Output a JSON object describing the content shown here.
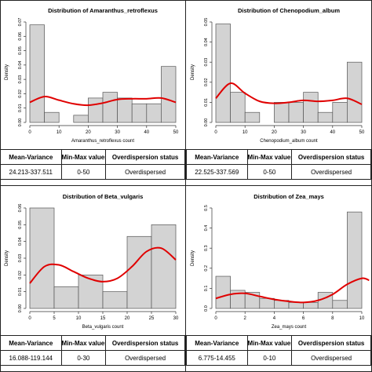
{
  "chart_data": [
    {
      "type": "bar",
      "title": "Distribution of Amaranthus_retroflexus",
      "xlabel": "Amaranthus_retroflexus count",
      "ylabel": "Density",
      "xlim": [
        0,
        50
      ],
      "ylim": [
        0,
        0.07
      ],
      "x_ticks": [
        0,
        10,
        20,
        30,
        40,
        50
      ],
      "y_ticks": [
        0.0,
        0.01,
        0.02,
        0.03,
        0.04,
        0.05,
        0.06,
        0.07
      ],
      "y_tick_labels": [
        "0.00",
        "0.01",
        "0.02",
        "0.03",
        "0.04",
        "0.05",
        "0.06",
        "0.07"
      ],
      "bins": [
        {
          "x0": 0,
          "x1": 5,
          "density": 0.068
        },
        {
          "x0": 5,
          "x1": 10,
          "density": 0.007
        },
        {
          "x0": 10,
          "x1": 15,
          "density": 0.0
        },
        {
          "x0": 15,
          "x1": 20,
          "density": 0.005
        },
        {
          "x0": 20,
          "x1": 25,
          "density": 0.017
        },
        {
          "x0": 25,
          "x1": 30,
          "density": 0.021
        },
        {
          "x0": 30,
          "x1": 35,
          "density": 0.017
        },
        {
          "x0": 35,
          "x1": 40,
          "density": 0.013
        },
        {
          "x0": 40,
          "x1": 45,
          "density": 0.013
        },
        {
          "x0": 45,
          "x1": 50,
          "density": 0.039
        }
      ],
      "curve": {
        "x": [
          0,
          5,
          10,
          15,
          20,
          25,
          30,
          35,
          40,
          45,
          50
        ],
        "y": [
          0.014,
          0.018,
          0.0155,
          0.013,
          0.012,
          0.0135,
          0.016,
          0.0165,
          0.0165,
          0.017,
          0.014
        ]
      }
    },
    {
      "type": "bar",
      "title": "Distribution of Chenopodium_album",
      "xlabel": "Chenopodium_album count",
      "ylabel": "Density",
      "xlim": [
        0,
        50
      ],
      "ylim": [
        0,
        0.05
      ],
      "x_ticks": [
        0,
        10,
        20,
        30,
        40,
        50
      ],
      "y_ticks": [
        0.0,
        0.01,
        0.02,
        0.03,
        0.04,
        0.05
      ],
      "y_tick_labels": [
        "0.00",
        "0.01",
        "0.02",
        "0.03",
        "0.04",
        "0.05"
      ],
      "bins": [
        {
          "x0": 0,
          "x1": 5,
          "density": 0.049
        },
        {
          "x0": 5,
          "x1": 10,
          "density": 0.015
        },
        {
          "x0": 10,
          "x1": 15,
          "density": 0.005
        },
        {
          "x0": 15,
          "x1": 20,
          "density": 0.0
        },
        {
          "x0": 20,
          "x1": 25,
          "density": 0.01
        },
        {
          "x0": 25,
          "x1": 30,
          "density": 0.01
        },
        {
          "x0": 30,
          "x1": 35,
          "density": 0.015
        },
        {
          "x0": 35,
          "x1": 40,
          "density": 0.005
        },
        {
          "x0": 40,
          "x1": 45,
          "density": 0.01
        },
        {
          "x0": 45,
          "x1": 50,
          "density": 0.03
        }
      ],
      "curve": {
        "x": [
          0,
          5,
          10,
          15,
          20,
          25,
          30,
          35,
          40,
          45,
          50
        ],
        "y": [
          0.012,
          0.0195,
          0.0145,
          0.0105,
          0.0095,
          0.01,
          0.011,
          0.0105,
          0.011,
          0.012,
          0.009
        ]
      }
    },
    {
      "type": "bar",
      "title": "Distribution of Beta_vulgaris",
      "xlabel": "Beta_vulgaris count",
      "ylabel": "Density",
      "xlim": [
        0,
        30
      ],
      "ylim": [
        0,
        0.06
      ],
      "x_ticks": [
        0,
        5,
        10,
        15,
        20,
        25,
        30
      ],
      "y_ticks": [
        0.0,
        0.01,
        0.02,
        0.03,
        0.04,
        0.05,
        0.06
      ],
      "y_tick_labels": [
        "0.00",
        "0.01",
        "0.02",
        "0.03",
        "0.04",
        "0.05",
        "0.06"
      ],
      "bins": [
        {
          "x0": 0,
          "x1": 5,
          "density": 0.06
        },
        {
          "x0": 5,
          "x1": 10,
          "density": 0.013
        },
        {
          "x0": 10,
          "x1": 15,
          "density": 0.02
        },
        {
          "x0": 15,
          "x1": 20,
          "density": 0.01
        },
        {
          "x0": 20,
          "x1": 25,
          "density": 0.043
        },
        {
          "x0": 25,
          "x1": 30,
          "density": 0.05
        }
      ],
      "curve": {
        "x": [
          0,
          3,
          6,
          9,
          12,
          15,
          18,
          21,
          24,
          27,
          30
        ],
        "y": [
          0.015,
          0.025,
          0.026,
          0.022,
          0.018,
          0.016,
          0.018,
          0.025,
          0.034,
          0.036,
          0.029
        ]
      }
    },
    {
      "type": "bar",
      "title": "Distribution of Zea_mays",
      "xlabel": "Zea_mays count",
      "ylabel": "Density",
      "xlim": [
        0,
        10
      ],
      "ylim": [
        0,
        0.5
      ],
      "x_ticks": [
        0,
        2,
        4,
        6,
        8,
        10
      ],
      "y_ticks": [
        0.0,
        0.1,
        0.2,
        0.3,
        0.4,
        0.5
      ],
      "y_tick_labels": [
        "0.0",
        "0.1",
        "0.2",
        "0.3",
        "0.4",
        "0.5"
      ],
      "bins": [
        {
          "x0": 0,
          "x1": 1,
          "density": 0.16
        },
        {
          "x0": 1,
          "x1": 2,
          "density": 0.09
        },
        {
          "x0": 2,
          "x1": 3,
          "density": 0.08
        },
        {
          "x0": 3,
          "x1": 4,
          "density": 0.05
        },
        {
          "x0": 4,
          "x1": 5,
          "density": 0.04
        },
        {
          "x0": 5,
          "x1": 6,
          "density": 0.03
        },
        {
          "x0": 6,
          "x1": 7,
          "density": 0.03
        },
        {
          "x0": 7,
          "x1": 8,
          "density": 0.08
        },
        {
          "x0": 8,
          "x1": 9,
          "density": 0.04
        },
        {
          "x0": 9,
          "x1": 10,
          "density": 0.48
        }
      ],
      "curve": {
        "x": [
          0,
          1,
          2,
          3,
          4,
          5,
          6,
          7,
          8,
          9,
          10,
          10.5
        ],
        "y": [
          0.05,
          0.07,
          0.075,
          0.06,
          0.045,
          0.035,
          0.03,
          0.04,
          0.07,
          0.12,
          0.15,
          0.14
        ]
      }
    }
  ],
  "tables": [
    {
      "headers": [
        "Mean-Variance",
        "Min-Max values",
        "Overdispersion status"
      ],
      "row": [
        "24.213-337.511",
        "0-50",
        "Overdispersed"
      ]
    },
    {
      "headers": [
        "Mean-Variance",
        "Min-Max values",
        "Overdispersion status"
      ],
      "row": [
        "22.525-337.569",
        "0-50",
        "Overdispersed"
      ]
    },
    {
      "headers": [
        "Mean-Variance",
        "Min-Max values",
        "Overdispersion status"
      ],
      "row": [
        "16.088-119.144",
        "0-30",
        "Overdispersed"
      ]
    },
    {
      "headers": [
        "Mean-Variance",
        "Min-Max values",
        "Overdispersion status"
      ],
      "row": [
        "6.775-14.455",
        "0-10",
        "Overdispersed"
      ]
    }
  ],
  "colors": {
    "bar_fill": "#d3d3d3",
    "bar_stroke": "#555555",
    "density_curve": "#e00000",
    "axis": "#333333"
  }
}
